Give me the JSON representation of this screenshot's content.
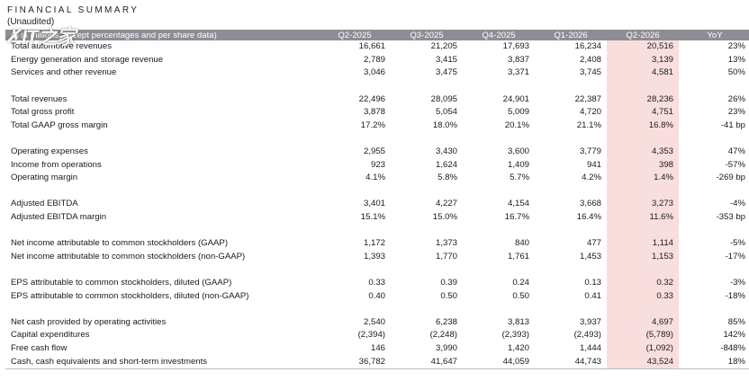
{
  "title": "FINANCIAL SUMMARY",
  "subtitle": "(Unaudited)",
  "watermark": "IT之家",
  "colors": {
    "header_bg": "#8d8d94",
    "highlight": "#f9dede"
  },
  "table": {
    "header": [
      "($ in millions, except percentages and per share data)",
      "Q2-2025",
      "Q3-2025",
      "Q4-2025",
      "Q1-2026",
      "Q2-2026",
      "YoY"
    ],
    "groups": [
      [
        [
          "Total automotive revenues",
          "16,661",
          "21,205",
          "17,693",
          "16,234",
          "20,516",
          "23%"
        ],
        [
          "Energy generation and storage revenue",
          "2,789",
          "3,415",
          "3,837",
          "2,408",
          "3,139",
          "13%"
        ],
        [
          "Services and other revenue",
          "3,046",
          "3,475",
          "3,371",
          "3,745",
          "4,581",
          "50%"
        ]
      ],
      [
        [
          "Total revenues",
          "22,496",
          "28,095",
          "24,901",
          "22,387",
          "28,236",
          "26%"
        ],
        [
          "Total gross profit",
          "3,878",
          "5,054",
          "5,009",
          "4,720",
          "4,751",
          "23%"
        ],
        [
          "Total GAAP gross margin",
          "17.2%",
          "18.0%",
          "20.1%",
          "21.1%",
          "16.8%",
          "-41 bp"
        ]
      ],
      [
        [
          "Operating expenses",
          "2,955",
          "3,430",
          "3,600",
          "3,779",
          "4,353",
          "47%"
        ],
        [
          "Income from operations",
          "923",
          "1,624",
          "1,409",
          "941",
          "398",
          "-57%"
        ],
        [
          "Operating margin",
          "4.1%",
          "5.8%",
          "5.7%",
          "4.2%",
          "1.4%",
          "-269 bp"
        ]
      ],
      [
        [
          "Adjusted EBITDA",
          "3,401",
          "4,227",
          "4,154",
          "3,668",
          "3,273",
          "-4%"
        ],
        [
          "Adjusted EBITDA margin",
          "15.1%",
          "15.0%",
          "16.7%",
          "16.4%",
          "11.6%",
          "-353 bp"
        ]
      ],
      [
        [
          "Net income attributable to common stockholders (GAAP)",
          "1,172",
          "1,373",
          "840",
          "477",
          "1,114",
          "-5%"
        ],
        [
          "Net income attributable to common stockholders (non-GAAP)",
          "1,393",
          "1,770",
          "1,761",
          "1,453",
          "1,153",
          "-17%"
        ]
      ],
      [
        [
          "EPS attributable to common stockholders, diluted (GAAP)",
          "0.33",
          "0.39",
          "0.24",
          "0.13",
          "0.32",
          "-3%"
        ],
        [
          "EPS attributable to common stockholders, diluted (non-GAAP)",
          "0.40",
          "0.50",
          "0.50",
          "0.41",
          "0.33",
          "-18%"
        ]
      ],
      [
        [
          "Net cash provided by operating activities",
          "2,540",
          "6,238",
          "3,813",
          "3,937",
          "4,697",
          "85%"
        ],
        [
          "Capital expenditures",
          "(2,394)",
          "(2,248)",
          "(2,393)",
          "(2,493)",
          "(5,789)",
          "142%"
        ],
        [
          "Free cash flow",
          "146",
          "3,990",
          "1,420",
          "1,444",
          "(1,092)",
          "-848%"
        ],
        [
          "Cash, cash equivalents and short-term investments",
          "36,782",
          "41,647",
          "44,059",
          "44,743",
          "43,524",
          "18%"
        ]
      ]
    ]
  }
}
